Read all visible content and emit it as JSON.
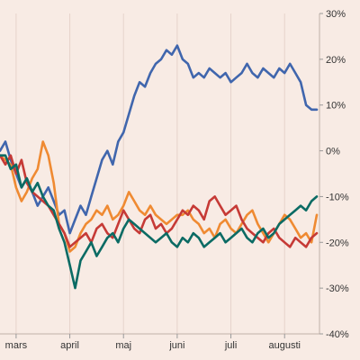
{
  "chart_data": {
    "type": "line",
    "ylim": [
      -40,
      30
    ],
    "y_ticks": [
      30,
      20,
      10,
      0,
      -10,
      -20,
      -30,
      -40
    ],
    "y_tick_labels": [
      "30%",
      "20%",
      "10%",
      "0%",
      "-10%",
      "-20%",
      "-30%",
      "-40%"
    ],
    "y_axis_position": "right",
    "x_tick_labels": [
      "mars",
      "april",
      "maj",
      "juni",
      "juli",
      "augusti"
    ],
    "x_tick_positions": [
      1,
      2,
      3,
      4,
      5,
      6
    ],
    "xlim": [
      0.7,
      6.65
    ],
    "grid": "vertical",
    "legend": "none",
    "x": [
      0.7,
      0.8,
      0.9,
      1.0,
      1.1,
      1.2,
      1.3,
      1.4,
      1.5,
      1.6,
      1.7,
      1.8,
      1.9,
      2.0,
      2.1,
      2.2,
      2.3,
      2.4,
      2.5,
      2.6,
      2.7,
      2.8,
      2.9,
      3.0,
      3.1,
      3.2,
      3.3,
      3.4,
      3.5,
      3.6,
      3.7,
      3.8,
      3.9,
      4.0,
      4.1,
      4.2,
      4.3,
      4.4,
      4.5,
      4.6,
      4.7,
      4.8,
      4.9,
      5.0,
      5.1,
      5.2,
      5.3,
      5.4,
      5.5,
      5.6,
      5.7,
      5.8,
      5.9,
      6.0,
      6.1,
      6.2,
      6.3,
      6.4,
      6.5,
      6.6
    ],
    "series": [
      {
        "color": "#4066ad",
        "values": [
          0,
          2,
          -2,
          -5,
          -8,
          -6,
          -9,
          -12,
          -10,
          -8,
          -11,
          -14,
          -13,
          -18,
          -15,
          -12,
          -14,
          -10,
          -6,
          -2,
          0,
          -3,
          2,
          4,
          8,
          12,
          15,
          14,
          17,
          19,
          20,
          22,
          21,
          23,
          20,
          19,
          16,
          17,
          16,
          18,
          17,
          16,
          17,
          15,
          16,
          17,
          19,
          17,
          16,
          18,
          17,
          16,
          18,
          17,
          19,
          17,
          15,
          10,
          9,
          9
        ]
      },
      {
        "color": "#ef8a32",
        "values": [
          -1,
          -2,
          -3,
          -8,
          -11,
          -9,
          -6,
          -4,
          2,
          -1,
          -7,
          -16,
          -18,
          -22,
          -21,
          -18,
          -16,
          -15,
          -13,
          -14,
          -12,
          -15,
          -14,
          -12,
          -9,
          -11,
          -13,
          -14,
          -12,
          -14,
          -15,
          -16,
          -15,
          -14,
          -14,
          -13,
          -15,
          -16,
          -18,
          -17,
          -19,
          -16,
          -15,
          -17,
          -18,
          -16,
          -14,
          -13,
          -16,
          -18,
          -20,
          -18,
          -16,
          -14,
          -15,
          -17,
          -19,
          -18,
          -20,
          -14
        ]
      },
      {
        "color": "#c63a36",
        "values": [
          -1,
          -3,
          -1,
          -5,
          -2,
          -7,
          -9,
          -10,
          -11,
          -12,
          -14,
          -16,
          -18,
          -21,
          -20,
          -19,
          -18,
          -20,
          -17,
          -16,
          -18,
          -19,
          -16,
          -13,
          -15,
          -17,
          -18,
          -15,
          -14,
          -17,
          -16,
          -18,
          -17,
          -15,
          -13,
          -14,
          -12,
          -13,
          -15,
          -11,
          -10,
          -12,
          -14,
          -13,
          -12,
          -15,
          -17,
          -18,
          -19,
          -20,
          -18,
          -17,
          -19,
          -20,
          -21,
          -19,
          -20,
          -21,
          -19,
          -18
        ]
      },
      {
        "color": "#0b6b64",
        "values": [
          -1,
          -1,
          -4,
          -3,
          -8,
          -6,
          -9,
          -7,
          -10,
          -12,
          -13,
          -17,
          -20,
          -25,
          -30,
          -24,
          -22,
          -20,
          -23,
          -21,
          -19,
          -18,
          -20,
          -17,
          -15,
          -16,
          -17,
          -18,
          -19,
          -20,
          -19,
          -18,
          -20,
          -21,
          -19,
          -20,
          -18,
          -19,
          -21,
          -20,
          -19,
          -18,
          -20,
          -19,
          -18,
          -17,
          -19,
          -20,
          -18,
          -17,
          -19,
          -18,
          -16,
          -15,
          -14,
          -13,
          -12,
          -13,
          -11,
          -10
        ]
      }
    ]
  }
}
